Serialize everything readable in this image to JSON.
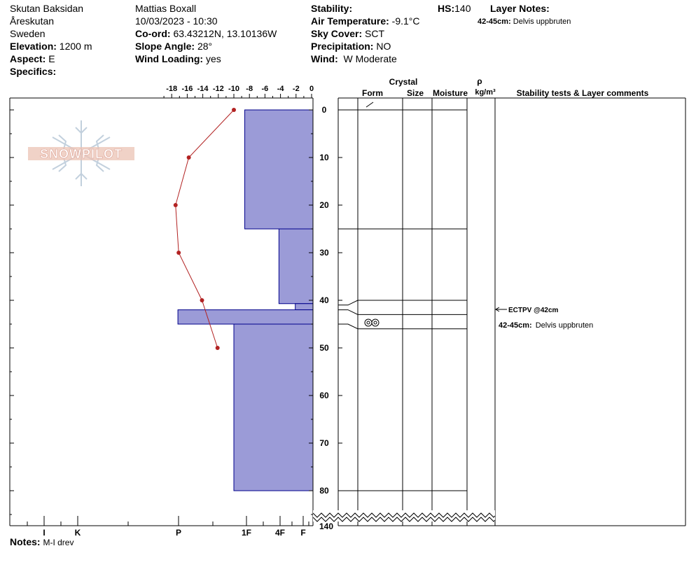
{
  "header": {
    "location": "Skutan Baksidan",
    "region": "Åreskutan",
    "country": "Sweden",
    "elevation_label": "Elevation:",
    "elevation": "1200 m",
    "aspect_label": "Aspect:",
    "aspect": "E",
    "specifics_label": "Specifics:",
    "observer": "Mattias Boxall",
    "datetime": "10/03/2023 - 10:30",
    "coord_label": "Co-ord:",
    "coord": "63.43212N, 13.10136W",
    "slope_label": "Slope Angle:",
    "slope": "28°",
    "wind_loading_label": "Wind Loading:",
    "wind_loading": "yes",
    "stability_label": "Stability:",
    "air_temp_label": "Air Temperature:",
    "air_temp": "-9.1°C",
    "sky_label": "Sky Cover:",
    "sky": "SCT",
    "precip_label": "Precipitation:",
    "precip": "NO",
    "wind_label": "Wind:",
    "wind": "W Moderate",
    "hs_label": "HS:",
    "hs": "140",
    "layer_notes_label": "Layer Notes:",
    "layer_note_depth": "42-45cm:",
    "layer_note_text": "Delvis uppbruten"
  },
  "notes": {
    "label": "Notes:",
    "text": "M-I drev"
  },
  "logo_text": "SNOWPILOT",
  "table_headers": {
    "crystal": "Crystal",
    "form": "Form",
    "size": "Size",
    "moisture": "Moisture",
    "rho": "ρ",
    "density_unit": "kg/m³",
    "comments": "Stability tests & Layer comments"
  },
  "stability_test": "ECTPV @42cm",
  "layer_comment": {
    "depth": "42-45cm:",
    "text": "Delvis uppbruten"
  },
  "colors": {
    "hardness_fill": "#9b9bd7",
    "hardness_stroke": "#00008b",
    "temp_line": "#b22222"
  },
  "chart_data": {
    "type": "snow_profile",
    "temperature_axis": {
      "ticks": [
        -18,
        -16,
        -14,
        -12,
        -10,
        -8,
        -6,
        -4,
        -2,
        0
      ],
      "range": [
        -19.5,
        0
      ]
    },
    "depth_axis": {
      "ticks": [
        0,
        10,
        20,
        30,
        40,
        50,
        60,
        70,
        80
      ],
      "bottom_label": "140",
      "unit": "cm"
    },
    "hardness_ticks": [
      "I",
      "K",
      "P",
      "1F",
      "4F",
      "F"
    ],
    "temperature_profile": [
      {
        "depth": 0,
        "temp": -10
      },
      {
        "depth": 10,
        "temp": -15.8
      },
      {
        "depth": 20,
        "temp": -17.5
      },
      {
        "depth": 30,
        "temp": -17.1
      },
      {
        "depth": 40,
        "temp": -14.1
      },
      {
        "depth": 50,
        "temp": -12.1
      }
    ],
    "layers": [
      {
        "top": 0,
        "bottom": 25,
        "hardness_value": -8.6
      },
      {
        "top": 25,
        "bottom": 40.7,
        "hardness_value": -4.2
      },
      {
        "top": 40.7,
        "bottom": 42,
        "hardness_value": -2.1
      },
      {
        "top": 42,
        "bottom": 45,
        "hardness_value": -17.2
      },
      {
        "top": 45,
        "bottom": 80,
        "hardness_value": -10
      }
    ],
    "crystal_layer_lines": [
      0,
      25,
      40,
      43,
      46,
      80
    ],
    "crystal_forms": [
      {
        "depth": 0,
        "symbol": "decomposing"
      },
      {
        "depth": 44.5,
        "symbol": "surface-hoar-rounds"
      }
    ]
  }
}
